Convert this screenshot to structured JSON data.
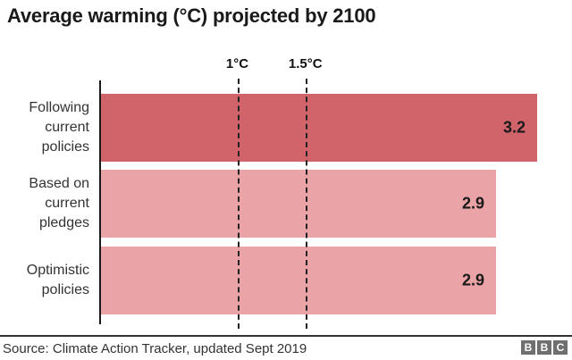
{
  "chart_data": {
    "type": "bar",
    "orientation": "horizontal",
    "title": "Average warming (°C) projected by 2100",
    "categories": [
      "Following\ncurrent\npolicies",
      "Based on\ncurrent\npledges",
      "Optimistic\npolicies"
    ],
    "values": [
      3.2,
      2.9,
      2.9
    ],
    "value_labels": [
      "3.2",
      "2.9",
      "2.9"
    ],
    "bar_colors": [
      "#d0646a",
      "#eaa3a7",
      "#eaa3a7"
    ],
    "thresholds": [
      {
        "label": "1°C",
        "value": 1
      },
      {
        "label": "1.5°C",
        "value": 1.5
      }
    ],
    "xlim": [
      0,
      3.46
    ],
    "unit": "°C",
    "grid": false,
    "legend": false
  },
  "footer": {
    "source": "Source: Climate Action Tracker, updated Sept 2019",
    "logo_letters": [
      "B",
      "B",
      "C"
    ]
  },
  "colors": {
    "bar_dark": "#d0646a",
    "bar_light": "#eaa3a7",
    "axis": "#1a1a1a",
    "text": "#333333",
    "logo_block": "#6f6f6f"
  }
}
